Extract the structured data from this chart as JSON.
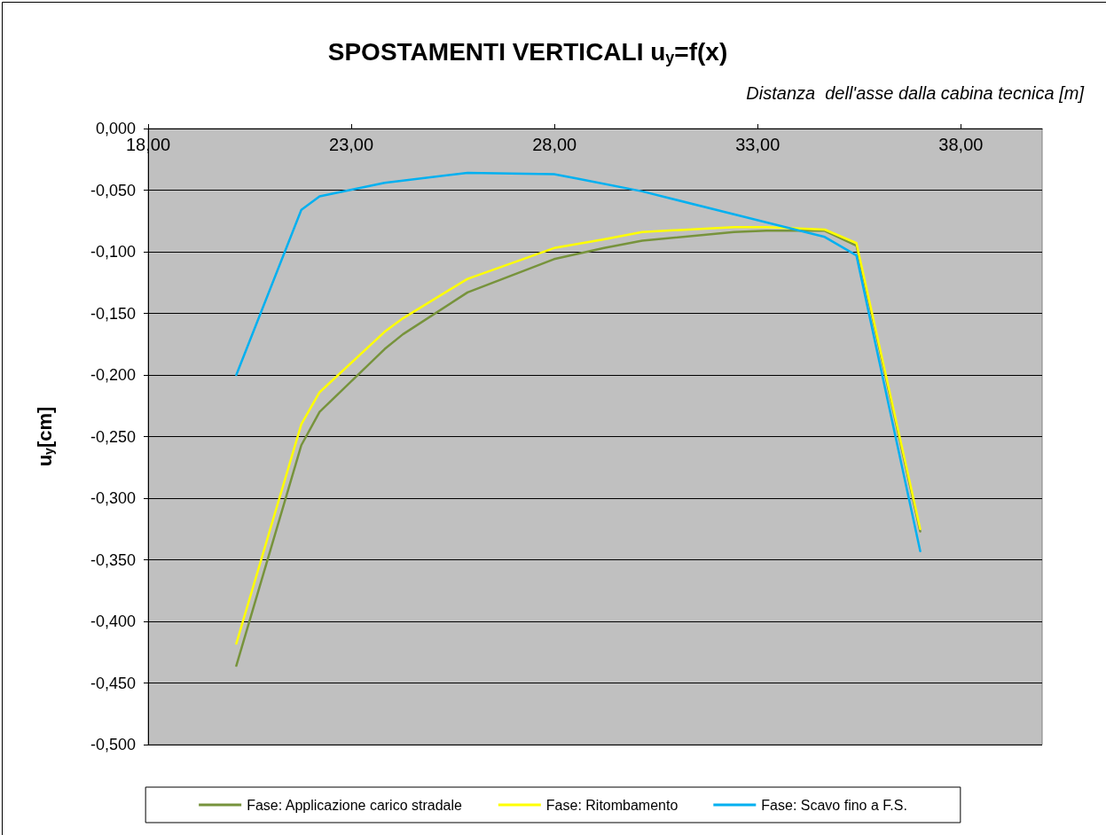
{
  "chart_data": {
    "type": "line",
    "title": "SPOSTAMENTI VERTICALI u$_{y}$=f(x)",
    "xlabel": "Distanza  dell'asse dalla cabina tecnica [m]",
    "ylabel": "u$_{y}$[cm]",
    "xlim": [
      18,
      40
    ],
    "xticks": [
      {
        "value": 18,
        "label": "18,00"
      },
      {
        "value": 23,
        "label": "23,00"
      },
      {
        "value": 28,
        "label": "28,00"
      },
      {
        "value": 33,
        "label": "33,00"
      },
      {
        "value": 38,
        "label": "38,00"
      }
    ],
    "ylim": [
      -0.5,
      0
    ],
    "yticks": [
      {
        "value": -0.5,
        "label": "-0,500"
      },
      {
        "value": -0.45,
        "label": "-0,450"
      },
      {
        "value": -0.4,
        "label": "-0,400"
      },
      {
        "value": -0.35,
        "label": "-0,350"
      },
      {
        "value": -0.3,
        "label": "-0,300"
      },
      {
        "value": -0.25,
        "label": "-0,250"
      },
      {
        "value": -0.2,
        "label": "-0,200"
      },
      {
        "value": -0.15,
        "label": "-0,150"
      },
      {
        "value": -0.1,
        "label": "-0,100"
      },
      {
        "value": -0.05,
        "label": "-0,050"
      },
      {
        "value": 0,
        "label": "0,000"
      }
    ],
    "grid": "y",
    "legend": "bottom",
    "marker": "none",
    "line_style": "solid",
    "series": [
      {
        "name": "Fase: Applicazione carico stradale",
        "color": "#77933c",
        "x": [
          20.17,
          21.77,
          22.22,
          23.82,
          24.27,
          25.86,
          27.99,
          29.22,
          30.16,
          32.42,
          33.21,
          34.65,
          35.43,
          37.0
        ],
        "values": [
          -0.436,
          -0.257,
          -0.23,
          -0.179,
          -0.167,
          -0.133,
          -0.106,
          -0.097,
          -0.091,
          -0.084,
          -0.083,
          -0.083,
          -0.095,
          -0.327
        ]
      },
      {
        "name": "Fase: Ritombamento",
        "color": "#ffff00",
        "x": [
          20.17,
          21.77,
          22.22,
          23.82,
          24.27,
          25.86,
          27.99,
          29.22,
          30.16,
          32.42,
          33.21,
          34.65,
          35.43,
          37.0
        ],
        "values": [
          -0.418,
          -0.24,
          -0.214,
          -0.165,
          -0.154,
          -0.122,
          -0.097,
          -0.09,
          -0.084,
          -0.08,
          -0.08,
          -0.082,
          -0.093,
          -0.325
        ]
      },
      {
        "name": "Fase: Scavo fino a F.S.",
        "color": "#00b0f0",
        "x": [
          20.17,
          21.77,
          22.22,
          23.82,
          25.86,
          27.99,
          28.62,
          30.16,
          34.65,
          35.43,
          37.0
        ],
        "values": [
          -0.2,
          -0.066,
          -0.055,
          -0.044,
          -0.036,
          -0.037,
          -0.041,
          -0.051,
          -0.088,
          -0.103,
          -0.343
        ]
      }
    ]
  }
}
